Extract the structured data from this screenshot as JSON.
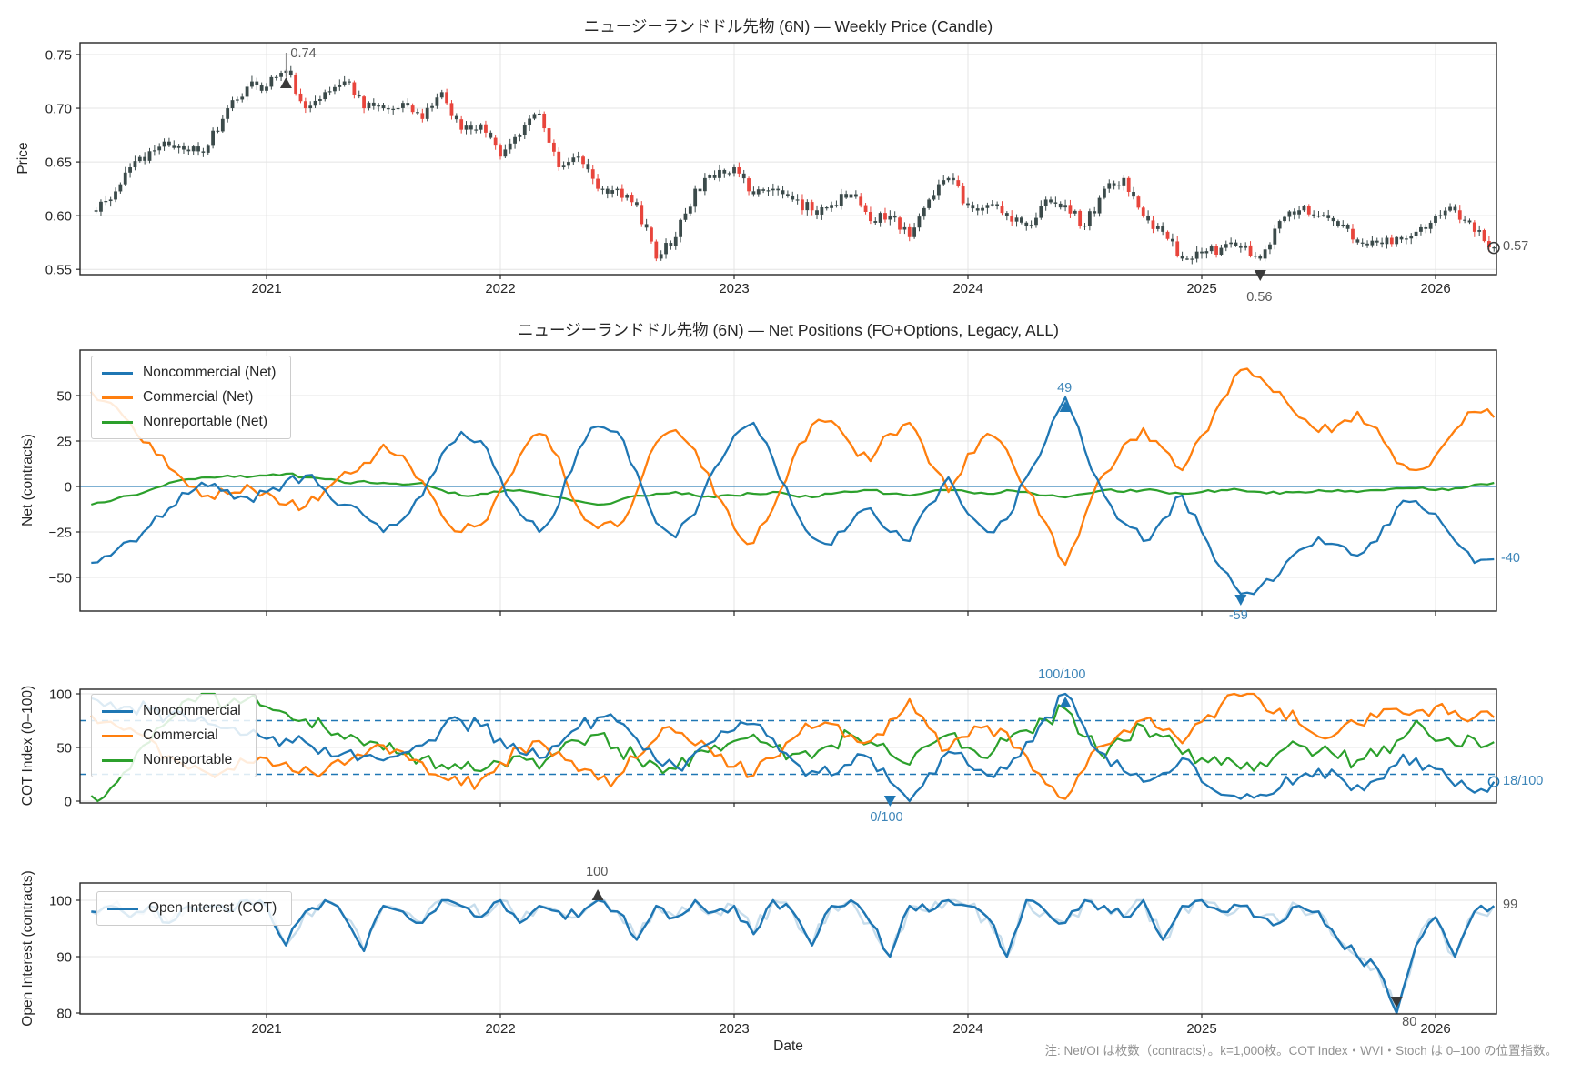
{
  "axes": {
    "xlabel": "Date",
    "xticks": {
      "values": [
        2021,
        2022,
        2023,
        2024,
        2025,
        2026
      ],
      "labels": [
        "2021",
        "2022",
        "2023",
        "2024",
        "2025",
        "2026"
      ]
    }
  },
  "panels": {
    "price": {
      "title": "ニュージーランドドル先物 (6N) — Weekly Price (Candle)",
      "ylabel": "Price",
      "yticks": {
        "values": [
          0.55,
          0.6,
          0.65,
          0.7,
          0.75
        ],
        "labels": [
          "0.55",
          "0.60",
          "0.65",
          "0.70",
          "0.75"
        ]
      },
      "annotations": {
        "peak": "0.74",
        "trough": "0.56",
        "last": "0.57"
      }
    },
    "net": {
      "title": "ニュージーランドドル先物 (6N) — Net Positions (FO+Options, Legacy, ALL)",
      "ylabel": "Net (contracts)",
      "yticks": {
        "values": [
          50,
          25,
          0,
          -25,
          -50
        ],
        "labels": [
          "50",
          "25",
          "0",
          "−25",
          "−50"
        ]
      },
      "legend": [
        "Noncommercial (Net)",
        "Commercial (Net)",
        "Nonreportable (Net)"
      ],
      "annotations": {
        "max": "49",
        "min": "-59",
        "last": "-40"
      }
    },
    "cot": {
      "ylabel": "COT Index (0–100)",
      "yticks": {
        "values": [
          0,
          50,
          100
        ],
        "labels": [
          "0",
          "50",
          "100"
        ]
      },
      "legend": [
        "Noncommercial",
        "Commercial",
        "Nonreportable"
      ],
      "annotations": {
        "max": "100/100",
        "min": "0/100",
        "last": "18/100"
      },
      "threshold_lines": [
        25,
        75
      ]
    },
    "oi": {
      "ylabel": "Open Interest (contracts)",
      "yticks": {
        "values": [
          80,
          90,
          100
        ],
        "labels": [
          "80",
          "90",
          "100"
        ]
      },
      "legend": [
        "Open Interest (COT)"
      ],
      "annotations": {
        "max": "100",
        "min": "80",
        "last": "99"
      }
    }
  },
  "note": "注: Net/OI は枚数（contracts）。k=1,000枚。COT Index・WVI・Stoch は 0–100 の位置指数。",
  "colors": {
    "noncommercial": "#1f77b4",
    "commercial": "#ff7f0e",
    "nonreportable": "#2ca02c",
    "oi_line": "#1f77b4",
    "candle_up": "#3b4a4a",
    "candle_down": "#e8453c",
    "annotation_blue": "#3d85b8",
    "annotation_gray": "#595959",
    "grid": "#e4e4e4",
    "spine": "#262626"
  },
  "chart_data": {
    "type": "multi-panel-timeseries",
    "x_unit": "decimal_year",
    "x_start": 2020.25,
    "x_step_months": 1,
    "x_ticks": [
      2021,
      2022,
      2023,
      2024,
      2025,
      2026
    ],
    "grid": true,
    "price_panel": {
      "type": "candlestick",
      "ylim": [
        0.545,
        0.761
      ],
      "close": [
        0.605,
        0.615,
        0.645,
        0.66,
        0.665,
        0.66,
        0.665,
        0.7,
        0.72,
        0.72,
        0.735,
        0.7,
        0.715,
        0.725,
        0.7,
        0.7,
        0.705,
        0.69,
        0.715,
        0.68,
        0.685,
        0.655,
        0.675,
        0.695,
        0.645,
        0.655,
        0.625,
        0.625,
        0.61,
        0.56,
        0.58,
        0.625,
        0.635,
        0.645,
        0.62,
        0.625,
        0.615,
        0.605,
        0.61,
        0.62,
        0.595,
        0.6,
        0.58,
        0.615,
        0.635,
        0.61,
        0.61,
        0.6,
        0.59,
        0.615,
        0.61,
        0.59,
        0.625,
        0.635,
        0.6,
        0.585,
        0.56,
        0.565,
        0.57,
        0.57,
        0.56,
        0.595,
        0.605,
        0.6,
        0.59,
        0.575,
        0.575,
        0.58,
        0.585,
        0.6,
        0.605,
        0.585,
        0.57
      ],
      "annotated": {
        "high": 0.74,
        "low": 0.56,
        "last": 0.57
      }
    },
    "net_panel": {
      "type": "line",
      "ylim": [
        -68,
        75
      ],
      "zero_line": 0,
      "series": [
        {
          "name": "Noncommercial (Net)",
          "values": [
            -42,
            -38,
            -30,
            -22,
            -12,
            -4,
            0,
            -2,
            -6,
            -3,
            3,
            6,
            -2,
            -10,
            -16,
            -25,
            -18,
            -5,
            18,
            30,
            25,
            5,
            -15,
            -25,
            -10,
            20,
            33,
            30,
            8,
            -20,
            -28,
            -15,
            10,
            28,
            35,
            15,
            -10,
            -28,
            -32,
            -20,
            -12,
            -25,
            -30,
            -10,
            5,
            -15,
            -25,
            -18,
            5,
            25,
            49,
            20,
            -5,
            -20,
            -30,
            -18,
            -5,
            -25,
            -45,
            -59,
            -55,
            -48,
            -35,
            -28,
            -32,
            -38,
            -30,
            -12,
            -8,
            -15,
            -30,
            -42,
            -40
          ]
        },
        {
          "name": "Commercial (Net)",
          "values": [
            52,
            46,
            35,
            24,
            10,
            0,
            -5,
            -4,
            1,
            -3,
            -10,
            -11,
            -2,
            8,
            13,
            23,
            17,
            3,
            -16,
            -25,
            -21,
            -2,
            17,
            29,
            16,
            -12,
            -23,
            -22,
            -3,
            24,
            31,
            20,
            -4,
            -23,
            -31,
            -12,
            15,
            34,
            36,
            23,
            14,
            29,
            35,
            13,
            -3,
            18,
            29,
            20,
            -2,
            -20,
            -43,
            -16,
            7,
            23,
            32,
            21,
            9,
            28,
            47,
            64,
            60,
            52,
            38,
            30,
            34,
            41,
            32,
            13,
            9,
            17,
            31,
            41,
            38
          ]
        },
        {
          "name": "Nonreportable (Net)",
          "values": [
            -10,
            -8,
            -5,
            -2,
            2,
            4,
            5,
            6,
            5,
            6,
            7,
            5,
            4,
            2,
            3,
            2,
            1,
            2,
            -2,
            -5,
            -4,
            -3,
            -2,
            -4,
            -6,
            -8,
            -10,
            -8,
            -5,
            -4,
            -3,
            -5,
            -6,
            -5,
            -4,
            -3,
            -5,
            -6,
            -4,
            -3,
            -2,
            -4,
            -5,
            -3,
            -2,
            -3,
            -4,
            -2,
            -3,
            -5,
            -6,
            -4,
            -2,
            -3,
            -2,
            -3,
            -4,
            -3,
            -2,
            -2,
            -3,
            -4,
            -3,
            -2,
            -2,
            -3,
            -2,
            -1,
            -1,
            -2,
            -1,
            1,
            2
          ]
        }
      ],
      "annotated": {
        "noncommercial_max": 49,
        "noncommercial_min": -59,
        "noncommercial_last": -40
      }
    },
    "cot_index_panel": {
      "type": "line",
      "ylim": [
        -4,
        104
      ],
      "threshold_lines": [
        25,
        75
      ],
      "series": [
        {
          "name": "Noncommercial",
          "values": [
            96,
            92,
            88,
            85,
            80,
            75,
            72,
            68,
            62,
            58,
            58,
            55,
            50,
            45,
            42,
            38,
            45,
            52,
            68,
            75,
            70,
            58,
            45,
            40,
            52,
            68,
            78,
            74,
            58,
            38,
            32,
            45,
            56,
            66,
            72,
            58,
            38,
            28,
            24,
            34,
            40,
            18,
            0,
            26,
            46,
            34,
            24,
            30,
            55,
            78,
            100,
            68,
            44,
            28,
            18,
            26,
            40,
            18,
            6,
            2,
            6,
            12,
            22,
            30,
            24,
            15,
            20,
            34,
            40,
            30,
            14,
            8,
            18
          ]
        },
        {
          "name": "Commercial",
          "values": [
            80,
            74,
            68,
            58,
            42,
            30,
            26,
            30,
            36,
            40,
            36,
            32,
            28,
            34,
            42,
            52,
            46,
            36,
            22,
            15,
            20,
            36,
            50,
            56,
            46,
            28,
            20,
            22,
            40,
            58,
            64,
            52,
            42,
            32,
            24,
            40,
            58,
            68,
            72,
            62,
            56,
            76,
            95,
            68,
            48,
            60,
            70,
            64,
            42,
            16,
            2,
            30,
            52,
            66,
            76,
            66,
            54,
            74,
            90,
            98,
            94,
            86,
            72,
            60,
            64,
            72,
            78,
            86,
            84,
            88,
            84,
            78,
            78
          ]
        },
        {
          "name": "Nonreportable",
          "values": [
            5,
            12,
            30,
            55,
            75,
            95,
            100,
            90,
            95,
            88,
            82,
            76,
            68,
            58,
            52,
            48,
            44,
            40,
            34,
            30,
            28,
            36,
            42,
            30,
            46,
            56,
            62,
            50,
            40,
            34,
            30,
            46,
            52,
            56,
            62,
            50,
            44,
            40,
            52,
            62,
            55,
            44,
            34,
            52,
            62,
            50,
            40,
            56,
            66,
            76,
            86,
            60,
            40,
            56,
            70,
            60,
            44,
            40,
            34,
            30,
            36,
            46,
            52,
            46,
            40,
            38,
            42,
            56,
            75,
            56,
            52,
            58,
            55
          ]
        }
      ],
      "annotated": {
        "noncommercial_max": "100/100",
        "noncommercial_min": "0/100",
        "noncommercial_last": "18/100"
      }
    },
    "oi_panel": {
      "type": "line",
      "ylim": [
        78,
        103
      ],
      "series": [
        {
          "name": "Open Interest (COT)",
          "values": [
            98,
            99,
            97,
            99,
            96,
            99,
            99,
            98,
            100,
            99,
            92,
            98,
            100,
            97,
            91,
            99,
            98,
            96,
            100,
            99,
            97,
            100,
            96,
            99,
            98,
            97,
            100,
            98,
            93,
            99,
            97,
            100,
            98,
            99,
            94,
            100,
            98,
            92,
            99,
            100,
            96,
            90,
            99,
            98,
            100,
            99,
            97,
            90,
            100,
            98,
            96,
            100,
            99,
            97,
            100,
            93,
            99,
            100,
            98,
            99,
            97,
            96,
            99,
            98,
            93,
            90,
            88,
            80,
            92,
            97,
            90,
            98,
            99
          ]
        }
      ],
      "annotated": {
        "max": 100,
        "min": 80,
        "last": 99
      }
    }
  }
}
